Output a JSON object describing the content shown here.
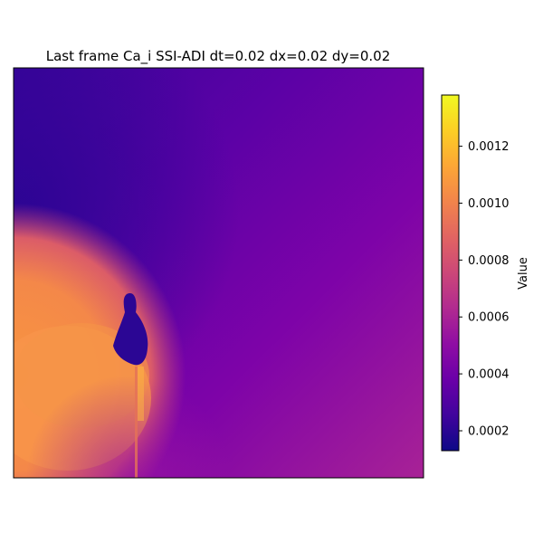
{
  "chart_data": {
    "type": "heatmap",
    "title": "Last frame Ca_i SSI-ADI dt=0.02 dx=0.02 dy=0.02",
    "xlabel": "",
    "ylabel": "",
    "axes_ticks_visible": false,
    "colormap": "plasma",
    "colorbar": {
      "label": "Value",
      "range": [
        0.00013,
        0.00138
      ],
      "ticks": [
        {
          "value": 0.0002,
          "label": "0.0002"
        },
        {
          "value": 0.0004,
          "label": "0.0004"
        },
        {
          "value": 0.0006,
          "label": "0.0006"
        },
        {
          "value": 0.0008,
          "label": "0.0008"
        },
        {
          "value": 0.001,
          "label": "0.0010"
        },
        {
          "value": 0.0012,
          "label": "0.0012"
        }
      ]
    },
    "field_description": {
      "background_gradient": "low (~0.0003) at top-left rising to ~0.00075 at bottom-right",
      "high_region": "bottom-left blob ~0.0009-0.0011",
      "low_spot": "dark notch ~0.00018 near center-left",
      "vertical_streak": "thin bright streak below the notch"
    }
  }
}
